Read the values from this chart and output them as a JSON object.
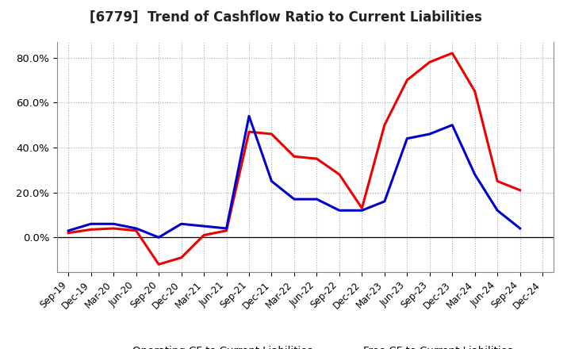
{
  "title": "[6779]  Trend of Cashflow Ratio to Current Liabilities",
  "x_labels": [
    "Sep-19",
    "Dec-19",
    "Mar-20",
    "Jun-20",
    "Sep-20",
    "Dec-20",
    "Mar-21",
    "Jun-21",
    "Sep-21",
    "Dec-21",
    "Mar-22",
    "Jun-22",
    "Sep-22",
    "Dec-22",
    "Mar-23",
    "Jun-23",
    "Sep-23",
    "Dec-23",
    "Mar-24",
    "Jun-24",
    "Sep-24",
    "Dec-24"
  ],
  "operating_cf": [
    0.02,
    0.035,
    0.04,
    0.03,
    -0.12,
    -0.09,
    0.01,
    0.03,
    0.47,
    0.46,
    0.36,
    0.35,
    0.28,
    0.13,
    0.5,
    0.7,
    0.78,
    0.82,
    0.65,
    0.25,
    0.21,
    null
  ],
  "free_cf": [
    0.03,
    0.06,
    0.06,
    0.04,
    0.0,
    0.06,
    0.05,
    0.04,
    0.54,
    0.25,
    0.17,
    0.17,
    0.12,
    0.12,
    0.16,
    0.44,
    0.46,
    0.5,
    0.28,
    0.12,
    0.04,
    null
  ],
  "operating_color": "#EE0000",
  "free_color": "#0000CC",
  "background_color": "#FFFFFF",
  "plot_bg_color": "#FFFFFF",
  "grid_color": "#AAAAAA",
  "ylim": [
    -0.155,
    0.87
  ],
  "yticks": [
    0.0,
    0.2,
    0.4,
    0.6,
    0.8
  ],
  "ytick_labels": [
    "0.0%",
    "20.0%",
    "40.0%",
    "60.0%",
    "80.0%"
  ],
  "legend_labels": [
    "Operating CF to Current Liabilities",
    "Free CF to Current Liabilities"
  ],
  "line_width": 2.2
}
